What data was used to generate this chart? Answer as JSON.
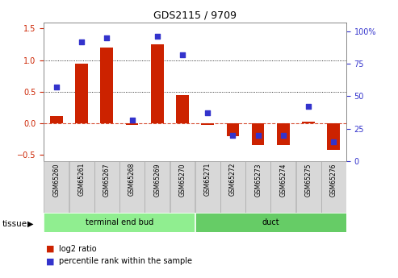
{
  "title": "GDS2115 / 9709",
  "samples": [
    "GSM65260",
    "GSM65261",
    "GSM65267",
    "GSM65268",
    "GSM65269",
    "GSM65270",
    "GSM65271",
    "GSM65272",
    "GSM65273",
    "GSM65274",
    "GSM65275",
    "GSM65276"
  ],
  "log2_ratio": [
    0.12,
    0.95,
    1.2,
    -0.02,
    1.25,
    0.45,
    -0.03,
    -0.2,
    -0.35,
    -0.35,
    0.03,
    -0.42
  ],
  "percentile_rank": [
    57,
    92,
    95,
    32,
    96,
    82,
    37,
    20,
    20,
    20,
    42,
    15
  ],
  "groups": [
    {
      "label": "terminal end bud",
      "start": 0,
      "end": 6,
      "color": "#90ee90"
    },
    {
      "label": "duct",
      "start": 6,
      "end": 12,
      "color": "#66cc66"
    }
  ],
  "bar_color": "#cc2200",
  "dot_color": "#3333cc",
  "ylim_left": [
    -0.6,
    1.6
  ],
  "ylim_right": [
    0,
    107
  ],
  "yticks_left": [
    -0.5,
    0.0,
    0.5,
    1.0,
    1.5
  ],
  "yticks_right": [
    0,
    25,
    50,
    75,
    100
  ],
  "tissue_label": "tissue",
  "legend_log2": "log2 ratio",
  "legend_pct": "percentile rank within the sample",
  "background_color": "#ffffff",
  "plot_bg": "#ffffff",
  "title_fontsize": 9,
  "tick_fontsize": 7
}
